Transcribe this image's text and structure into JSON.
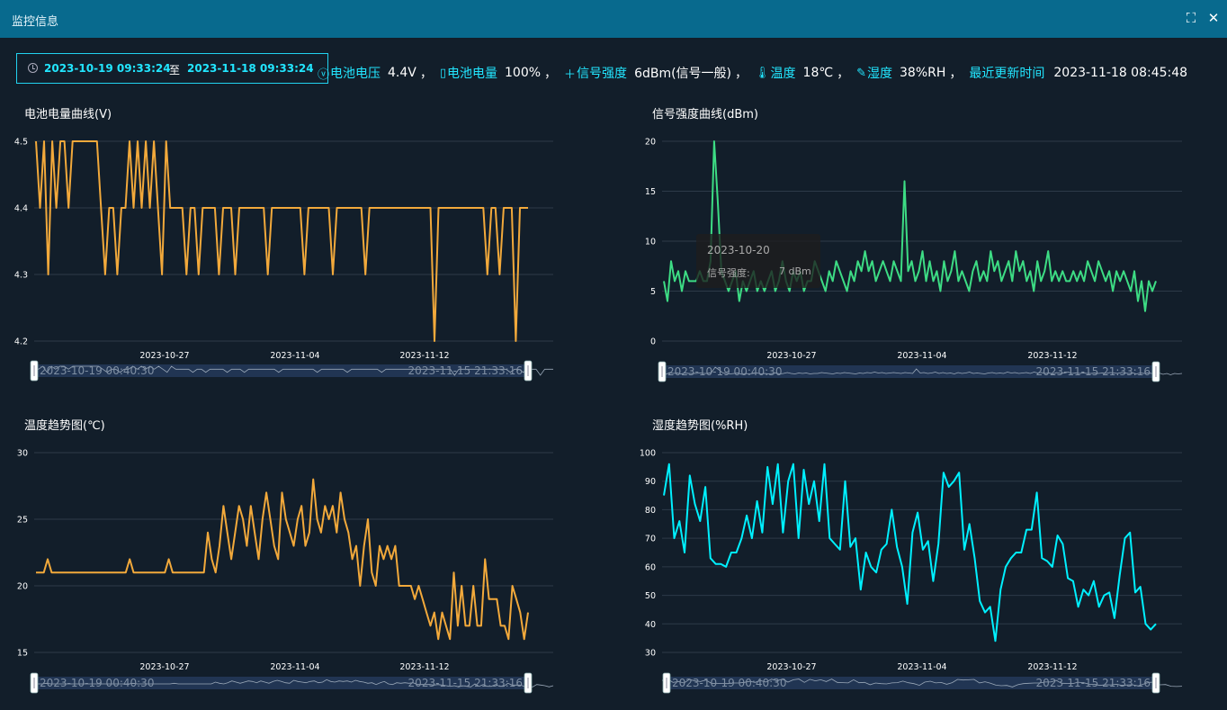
{
  "window": {
    "title": "监控信息"
  },
  "filter": {
    "start": "2023-10-19 09:33:24",
    "separator": "至",
    "end": "2023-11-18 09:33:24"
  },
  "stats": {
    "voltage_label": "电池电压",
    "voltage_value": "4.4V",
    "level_label": "电池电量",
    "level_value": "100%",
    "signal_label": "信号强度",
    "signal_value": "6dBm(信号一般)",
    "temp_label": "温度",
    "temp_value": "18℃",
    "humidity_label": "湿度",
    "humidity_value": "38%RH",
    "updated_label": "最近更新时间",
    "updated_value": "2023-11-18 08:45:48",
    "comma": "，"
  },
  "colors": {
    "accent": "#22e6ff",
    "orange": "#f2a93b",
    "green": "#3ddc84",
    "cyan": "#00f0ff",
    "grid": "#2d3a48"
  },
  "slider": {
    "start": "2023-10-19 00:40:30",
    "end": "2023-11-15 21:33:16"
  },
  "tooltip": {
    "date": "2023-10-20",
    "label": "信号强度:",
    "value": "7 dBm"
  },
  "chart_data": [
    {
      "id": "voltage",
      "type": "line",
      "title": "电池电量曲线(V)",
      "color": "#f2a93b",
      "yticks": [
        "4.5",
        "4.4",
        "4.3",
        "4.2"
      ],
      "ylim": [
        4.2,
        4.5
      ],
      "xticks": [
        "2023-10-27",
        "2023-11-04",
        "2023-11-12"
      ],
      "xticks_pos": [
        0.2,
        0.45,
        0.7
      ],
      "values": [
        4.5,
        4.4,
        4.5,
        4.3,
        4.5,
        4.4,
        4.5,
        4.5,
        4.4,
        4.5,
        4.5,
        4.5,
        4.5,
        4.5,
        4.5,
        4.5,
        4.4,
        4.3,
        4.4,
        4.4,
        4.3,
        4.4,
        4.4,
        4.5,
        4.4,
        4.5,
        4.4,
        4.5,
        4.4,
        4.5,
        4.4,
        4.3,
        4.5,
        4.4,
        4.4,
        4.4,
        4.4,
        4.3,
        4.4,
        4.4,
        4.3,
        4.4,
        4.4,
        4.4,
        4.4,
        4.3,
        4.4,
        4.4,
        4.4,
        4.3,
        4.4,
        4.4,
        4.4,
        4.4,
        4.4,
        4.4,
        4.4,
        4.3,
        4.4,
        4.4,
        4.4,
        4.4,
        4.4,
        4.4,
        4.4,
        4.4,
        4.3,
        4.4,
        4.4,
        4.4,
        4.4,
        4.4,
        4.4,
        4.3,
        4.4,
        4.4,
        4.4,
        4.4,
        4.4,
        4.4,
        4.4,
        4.3,
        4.4,
        4.4,
        4.4,
        4.4,
        4.4,
        4.4,
        4.4,
        4.4,
        4.4,
        4.4,
        4.4,
        4.4,
        4.4,
        4.4,
        4.4,
        4.4,
        4.2,
        4.4,
        4.4,
        4.4,
        4.4,
        4.4,
        4.4,
        4.4,
        4.4,
        4.4,
        4.4,
        4.4,
        4.4,
        4.3,
        4.4,
        4.4,
        4.3,
        4.4,
        4.4,
        4.4,
        4.2,
        4.4,
        4.4,
        4.4
      ]
    },
    {
      "id": "signal",
      "type": "line",
      "title": "信号强度曲线(dBm)",
      "color": "#3ddc84",
      "yticks": [
        "20",
        "15",
        "10",
        "5",
        "0"
      ],
      "ylim": [
        0,
        20
      ],
      "xticks": [
        "2023-10-27",
        "2023-11-04",
        "2023-11-12"
      ],
      "xticks_pos": [
        0.2,
        0.45,
        0.7
      ],
      "values": [
        6,
        4,
        8,
        6,
        7,
        5,
        7,
        6,
        6,
        6,
        7,
        6,
        6,
        8,
        20,
        14,
        7,
        6,
        5,
        6,
        7,
        4,
        6,
        5,
        6,
        7,
        5,
        6,
        5,
        6,
        7,
        5,
        6,
        8,
        6,
        5,
        7,
        6,
        7,
        5,
        6,
        6,
        8,
        7,
        6,
        5,
        7,
        6,
        8,
        7,
        6,
        5,
        7,
        6,
        8,
        7,
        9,
        7,
        8,
        6,
        7,
        8,
        7,
        6,
        8,
        7,
        6,
        16,
        7,
        8,
        6,
        7,
        9,
        6,
        8,
        6,
        7,
        5,
        8,
        6,
        7,
        9,
        6,
        7,
        6,
        5,
        7,
        8,
        6,
        7,
        6,
        9,
        7,
        8,
        6,
        7,
        8,
        6,
        9,
        7,
        8,
        6,
        7,
        5,
        8,
        6,
        7,
        9,
        6,
        7,
        6,
        7,
        6,
        6,
        7,
        6,
        7,
        6,
        8,
        7,
        6,
        8,
        7,
        6,
        7,
        5,
        7,
        6,
        7,
        6,
        5,
        7,
        4,
        6,
        3,
        6,
        5,
        6
      ]
    },
    {
      "id": "temperature",
      "type": "line",
      "title": "温度趋势图(℃)",
      "color": "#f2a93b",
      "yticks": [
        "30",
        "25",
        "20",
        "15"
      ],
      "ylim": [
        15,
        30
      ],
      "xticks": [
        "2023-10-27",
        "2023-11-04",
        "2023-11-12"
      ],
      "xticks_pos": [
        0.2,
        0.45,
        0.7
      ],
      "values": [
        21,
        21,
        21,
        22,
        21,
        21,
        21,
        21,
        21,
        21,
        21,
        21,
        21,
        21,
        21,
        21,
        21,
        21,
        21,
        21,
        21,
        21,
        21,
        21,
        22,
        21,
        21,
        21,
        21,
        21,
        21,
        21,
        21,
        21,
        22,
        21,
        21,
        21,
        21,
        21,
        21,
        21,
        21,
        21,
        24,
        22,
        21,
        23,
        26,
        24,
        22,
        24,
        26,
        25,
        23,
        26,
        24,
        22,
        25,
        27,
        25,
        23,
        22,
        27,
        25,
        24,
        23,
        25,
        26,
        23,
        24,
        28,
        25,
        24,
        26,
        25,
        26,
        24,
        27,
        25,
        24,
        22,
        23,
        20,
        23,
        25,
        21,
        20,
        23,
        22,
        23,
        22,
        23,
        20,
        20,
        20,
        20,
        19,
        20,
        19,
        18,
        17,
        18,
        16,
        18,
        17,
        16,
        21,
        17,
        20,
        17,
        17,
        20,
        17,
        17,
        22,
        19,
        19,
        19,
        17,
        17,
        16,
        20,
        19,
        18,
        16,
        18
      ]
    },
    {
      "id": "humidity",
      "type": "line",
      "title": "湿度趋势图(%RH)",
      "color": "#00f0ff",
      "yticks": [
        "100",
        "90",
        "80",
        "70",
        "60",
        "50",
        "40",
        "30"
      ],
      "ylim": [
        30,
        100
      ],
      "xticks": [
        "2023-10-27",
        "2023-11-04",
        "2023-11-12"
      ],
      "xticks_pos": [
        0.2,
        0.45,
        0.7
      ],
      "values": [
        85,
        96,
        70,
        76,
        65,
        92,
        82,
        76,
        88,
        63,
        61,
        61,
        60,
        65,
        65,
        70,
        78,
        70,
        83,
        72,
        95,
        82,
        96,
        72,
        90,
        96,
        70,
        94,
        82,
        90,
        76,
        96,
        70,
        68,
        66,
        90,
        67,
        70,
        52,
        65,
        60,
        58,
        66,
        68,
        80,
        67,
        60,
        47,
        72,
        79,
        66,
        69,
        55,
        68,
        93,
        88,
        90,
        93,
        66,
        75,
        63,
        48,
        44,
        46,
        34,
        52,
        60,
        63,
        65,
        65,
        73,
        73,
        86,
        63,
        62,
        60,
        71,
        68,
        56,
        55,
        46,
        52,
        50,
        55,
        46,
        50,
        51,
        42,
        57,
        70,
        72,
        51,
        53,
        40,
        38,
        40
      ]
    }
  ]
}
